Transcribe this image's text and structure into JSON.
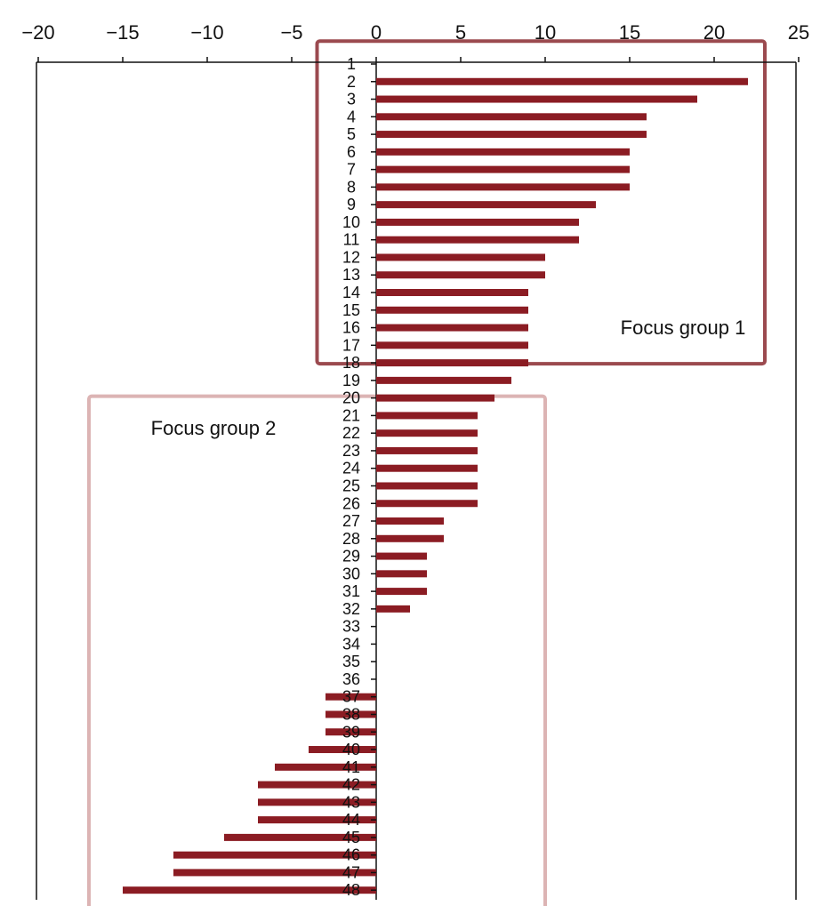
{
  "chart_data": {
    "type": "bar",
    "orientation": "horizontal",
    "title": "",
    "xlabel": "",
    "ylabel": "",
    "xlim": [
      -20,
      25
    ],
    "x_ticks": [
      -20,
      -15,
      -10,
      -5,
      0,
      5,
      10,
      15,
      20,
      25
    ],
    "x_tick_labels": [
      "−20",
      "−15",
      "−10",
      "−5",
      "0",
      "5",
      "10",
      "15",
      "20",
      "25"
    ],
    "categories": [
      "1",
      "2",
      "3",
      "4",
      "5",
      "6",
      "7",
      "8",
      "9",
      "10",
      "11",
      "12",
      "13",
      "14",
      "15",
      "16",
      "17",
      "18",
      "19",
      "20",
      "21",
      "22",
      "23",
      "24",
      "25",
      "26",
      "27",
      "28",
      "29",
      "30",
      "31",
      "32",
      "33",
      "34",
      "35",
      "36",
      "37",
      "38",
      "39",
      "40",
      "41",
      "42",
      "43",
      "44",
      "45",
      "46",
      "47",
      "48"
    ],
    "values": [
      0,
      22,
      19,
      16,
      16,
      15,
      15,
      15,
      13,
      12,
      12,
      10,
      10,
      9,
      9,
      9,
      9,
      9,
      8,
      7,
      6,
      6,
      6,
      6,
      6,
      6,
      4,
      4,
      3,
      3,
      3,
      2,
      0,
      0,
      0,
      0,
      -3,
      -3,
      -3,
      -4,
      -6,
      -7,
      -7,
      -7,
      -9,
      -12,
      -12,
      -15
    ],
    "bar_color": "#8b1c23",
    "grid": false,
    "legend": "none",
    "annotations": [
      {
        "label": "Focus group 1",
        "from_category": "1",
        "to_category": "17",
        "x_range": [
          -3.5,
          23
        ],
        "box_color": "#9b4a4f"
      },
      {
        "label": "Focus group 2",
        "from_category": "20",
        "to_category": "48",
        "x_range": [
          -17,
          10
        ],
        "box_color": "#dcb4b4"
      }
    ]
  }
}
